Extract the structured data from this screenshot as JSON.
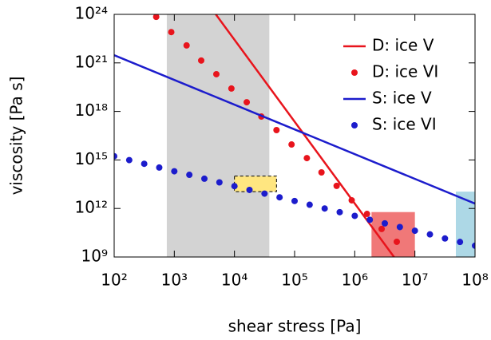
{
  "chart_data": {
    "type": "line",
    "x_label": "shear stress [Pa]",
    "y_label": "viscosity [Pa s]",
    "xscale": "log",
    "yscale": "log",
    "xlim": [
      100,
      100000000
    ],
    "ylim": [
      1000000000,
      1e+24
    ],
    "xticks": [
      {
        "value": 100,
        "label": "10²"
      },
      {
        "value": 1000,
        "label": "10³"
      },
      {
        "value": 10000,
        "label": "10⁴"
      },
      {
        "value": 100000,
        "label": "10⁵"
      },
      {
        "value": 1000000,
        "label": "10⁶"
      },
      {
        "value": 10000000,
        "label": "10⁷"
      },
      {
        "value": 100000000,
        "label": "10⁸"
      }
    ],
    "yticks": [
      {
        "value": 1000000000,
        "label": "10⁹"
      },
      {
        "value": 1000000000000,
        "label": "10¹²"
      },
      {
        "value": 1000000000000000,
        "label": "10¹⁵"
      },
      {
        "value": 1e+18,
        "label": "10¹⁸"
      },
      {
        "value": 1e+21,
        "label": "10²¹"
      },
      {
        "value": 1e+24,
        "label": "10²⁴"
      }
    ],
    "legend": "upper right",
    "regions": [
      {
        "color": "#d3d3d3",
        "x": [
          750,
          38000
        ],
        "y": [
          1000000000,
          1e+24
        ]
      },
      {
        "color": "#ffe680",
        "dashed": true,
        "x": [
          10000,
          50000
        ],
        "y": [
          11000000000000,
          100000000000000
        ]
      },
      {
        "color": "#f07878",
        "x": [
          1900000,
          10000000
        ],
        "y": [
          1000000000,
          600000000000
        ]
      },
      {
        "color": "#add8e6",
        "x": [
          48000000,
          100000000
        ],
        "y": [
          1000000000,
          11000000000000
        ]
      }
    ],
    "series": [
      {
        "name": "D: ice V",
        "color": "#e8141c",
        "style": "line",
        "x": [
          4900,
          4500000
        ],
        "values": [
          1e+24,
          1000000000
        ]
      },
      {
        "name": "D: ice VI",
        "color": "#e8141c",
        "style": "markers",
        "x": [
          500,
          890,
          1600,
          2800,
          5000,
          8900,
          16000,
          28000,
          50000,
          89000,
          160000,
          280000,
          500000,
          890000,
          1600000,
          2800000,
          5000000
        ],
        "values": [
          7e+23,
          8e+22,
          1.2e+22,
          1.4e+21,
          2e+20,
          2.6e+19,
          3.7e+18,
          4.8e+17,
          7e+16,
          9000000000000000.0,
          1300000000000000.0,
          170000000000000.0,
          25000000000000.0,
          3200000000000.0,
          460000000000.0,
          54000000000.0,
          8700000000.0
        ]
      },
      {
        "name": "S: ice V",
        "color": "#1c1ccc",
        "style": "line",
        "x": [
          100,
          100000000
        ],
        "values": [
          3e+21,
          2000000000000.0
        ]
      },
      {
        "name": "S: ice VI",
        "color": "#1c1ccc",
        "style": "markers",
        "x": [
          100,
          178,
          316,
          562,
          1000,
          1778,
          3162,
          5623,
          10000,
          17783,
          31623,
          56234,
          100000,
          177828,
          316228,
          562341,
          1000000,
          1778279,
          3162278,
          5623413,
          10000000,
          17782794,
          31622777,
          56234133,
          100000000
        ],
        "values": [
          1700000000000000.0,
          980000000000000.0,
          580000000000000.0,
          340000000000000.0,
          200000000000000.0,
          120000000000000.0,
          69000000000000.0,
          41000000000000.0,
          24000000000000.0,
          14000000000000.0,
          8300000000000.0,
          4900000000000.0,
          2900000000000.0,
          1700000000000.0,
          1000000000000.0,
          590000000000.0,
          350000000000.0,
          200000000000.0,
          120000000000.0,
          71000000000.0,
          42000000000.0,
          25000000000.0,
          14000000000.0,
          8500000000.0,
          5000000000.0
        ]
      }
    ]
  }
}
